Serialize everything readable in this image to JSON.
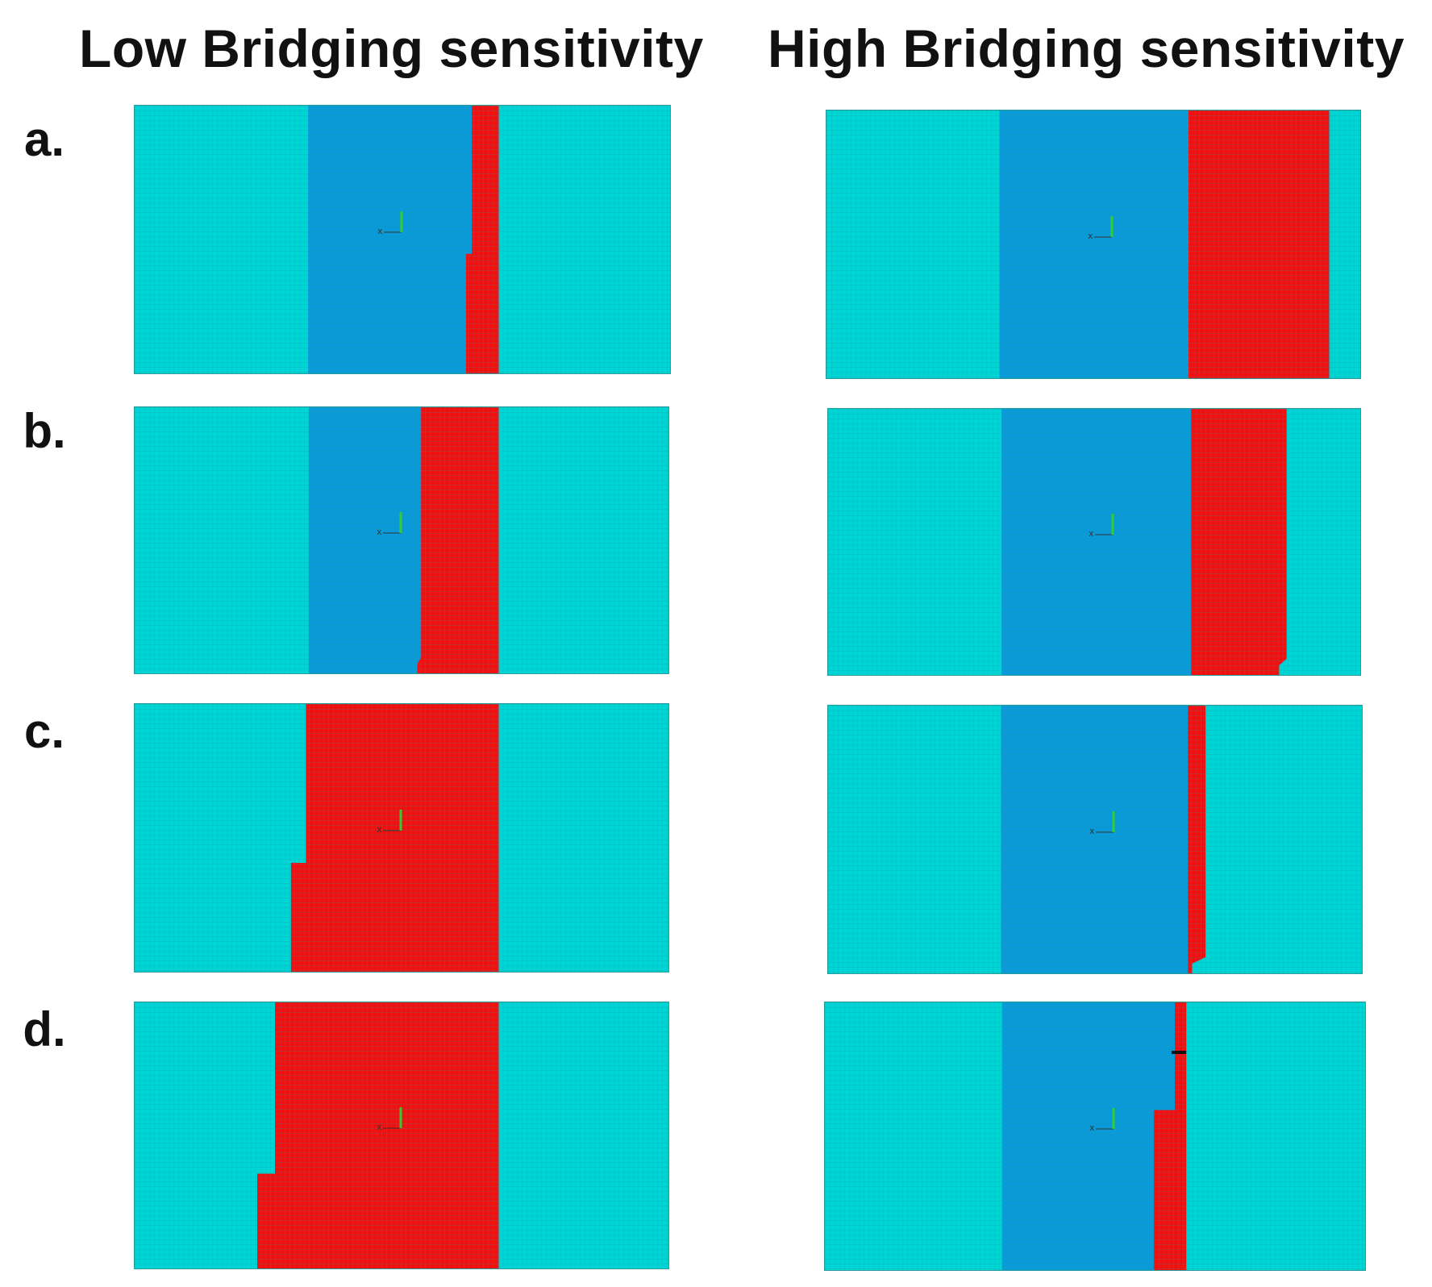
{
  "column_titles": {
    "low": "Low Bridging sensitivity",
    "high": "High Bridging sensitivity"
  },
  "row_labels": [
    "a.",
    "b.",
    "c.",
    "d."
  ],
  "colors": {
    "outer_material": "#00d4d4",
    "inner_material": "#0b9ad8",
    "bridged_region": "#ee1111",
    "mesh_line": "#1a9a9a"
  },
  "panels": [
    {
      "row": "a.",
      "column": "low",
      "red_front_top": 0.628,
      "red_front_bottom": 0.617,
      "axis_label": "x"
    },
    {
      "row": "a.",
      "column": "high",
      "red_front_top": 0.939,
      "red_front_bottom": 0.939,
      "axis_label": "x"
    },
    {
      "row": "b.",
      "column": "low",
      "red_front_top": 0.535,
      "red_front_bottom": 0.528,
      "axis_label": "x"
    },
    {
      "row": "b.",
      "column": "high",
      "red_front_top": 0.859,
      "red_front_bottom": 0.845,
      "axis_label": "x"
    },
    {
      "row": "c.",
      "column": "low",
      "red_front_top": 0.32,
      "red_front_bottom": 0.292,
      "axis_label": "x"
    },
    {
      "row": "c.",
      "column": "high",
      "red_front_top": 0.705,
      "red_front_bottom": 0.68,
      "axis_label": "x"
    },
    {
      "row": "d.",
      "column": "low",
      "red_front_top": 0.262,
      "red_front_bottom": 0.229,
      "axis_label": "x"
    },
    {
      "row": "d.",
      "column": "high",
      "red_front_top": 0.646,
      "red_front_bottom": 0.607,
      "axis_label": "x"
    }
  ]
}
